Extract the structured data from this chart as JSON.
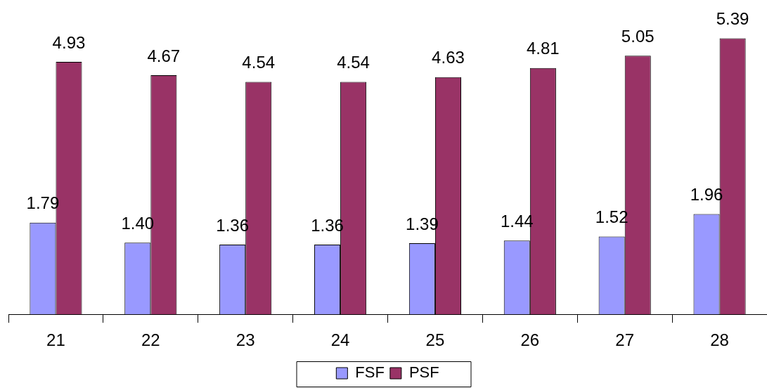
{
  "chart_data": {
    "type": "bar",
    "categories": [
      "21",
      "22",
      "23",
      "24",
      "25",
      "26",
      "27",
      "28"
    ],
    "series": [
      {
        "name": "FSF",
        "color": "#9999ff",
        "values": [
          1.79,
          1.4,
          1.36,
          1.36,
          1.39,
          1.44,
          1.52,
          1.96
        ],
        "value_labels": [
          "1.79",
          "1.40",
          "1.36",
          "1.36",
          "1.39",
          "1.44",
          "1.52",
          "1.96"
        ]
      },
      {
        "name": "PSF",
        "color": "#993366",
        "values": [
          4.93,
          4.67,
          4.54,
          4.54,
          4.63,
          4.81,
          5.05,
          5.39
        ],
        "value_labels": [
          "4.93",
          "4.67",
          "4.54",
          "4.54",
          "4.63",
          "4.81",
          "5.05",
          "5.39"
        ]
      }
    ],
    "tick_labels": "x",
    "data_labels": true,
    "legend": "bottom",
    "grid": false
  }
}
